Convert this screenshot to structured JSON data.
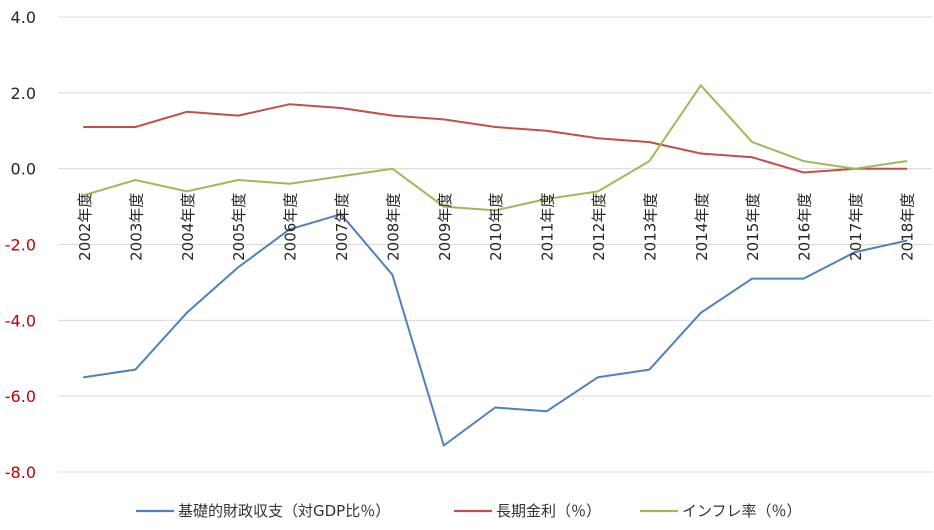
{
  "chart_data": {
    "type": "line",
    "x": [
      "2002年度",
      "2003年度",
      "2004年度",
      "2005年度",
      "2006年度",
      "2007年度",
      "2008年度",
      "2009年度",
      "2010年度",
      "2011年度",
      "2012年度",
      "2013年度",
      "2014年度",
      "2015年度",
      "2016年度",
      "2017年度",
      "2018年度"
    ],
    "yticks": [
      "4.0",
      "2.0",
      "0.0",
      "-2.0",
      "-4.0",
      "-6.0",
      "-8.0"
    ],
    "ylim": [
      -8,
      4
    ],
    "grid": true,
    "legend_position": "bottom",
    "series": [
      {
        "name": "基礎的財政収支（対GDP比％）",
        "color": "#4f81bd",
        "values": [
          -5.5,
          -5.3,
          -3.8,
          -2.6,
          -1.6,
          -1.2,
          -2.8,
          -7.3,
          -6.3,
          -6.4,
          -5.5,
          -5.3,
          -3.8,
          -2.9,
          -2.9,
          -2.2,
          -1.9
        ]
      },
      {
        "name": "長期金利（％）",
        "color": "#c0504d",
        "values": [
          1.1,
          1.1,
          1.5,
          1.4,
          1.7,
          1.6,
          1.4,
          1.3,
          1.1,
          1.0,
          0.8,
          0.7,
          0.4,
          0.3,
          -0.1,
          0.0,
          0.0
        ]
      },
      {
        "name": "インフレ率（％）",
        "color": "#9bbb59",
        "values": [
          -0.7,
          -0.3,
          -0.6,
          -0.3,
          -0.4,
          -0.2,
          0.0,
          -1.0,
          -1.1,
          -0.8,
          -0.6,
          0.2,
          2.2,
          0.7,
          0.2,
          0.0,
          0.2
        ]
      }
    ]
  },
  "colors": {
    "positive_tick": "#262626",
    "negative_tick": "#c00000",
    "gridline": "#d9d9d9"
  }
}
